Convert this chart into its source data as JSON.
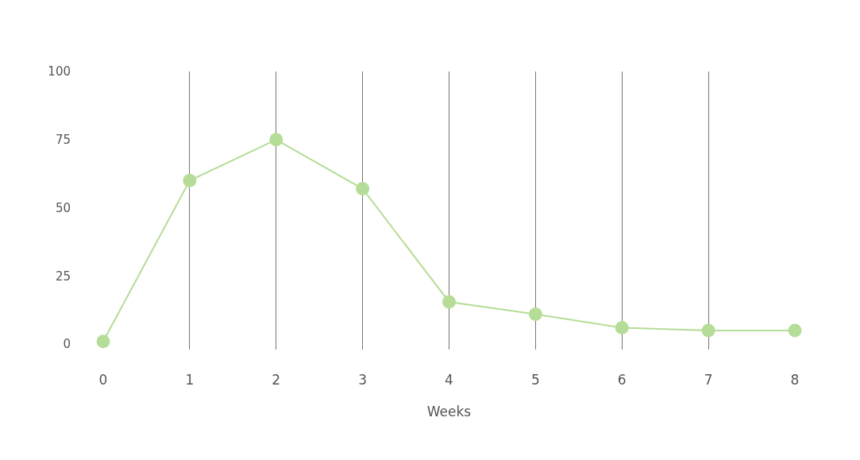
{
  "chart_data": {
    "type": "line",
    "xlabel": "Weeks",
    "x": [
      0,
      1,
      2,
      3,
      4,
      5,
      6,
      7,
      8
    ],
    "series": [
      {
        "color": "#b5dd98",
        "values": [
          1,
          60,
          75,
          57,
          15.5,
          11,
          6,
          5,
          5
        ]
      }
    ],
    "xlim": [
      0,
      8
    ],
    "xticks": [
      0,
      1,
      2,
      3,
      4,
      5,
      6,
      7,
      8
    ],
    "ylim": [
      -2,
      100
    ],
    "yticks": [
      0,
      25,
      50,
      75,
      100
    ],
    "grid": "x",
    "marker": "circle",
    "line_style": "solid",
    "legend": false
  }
}
